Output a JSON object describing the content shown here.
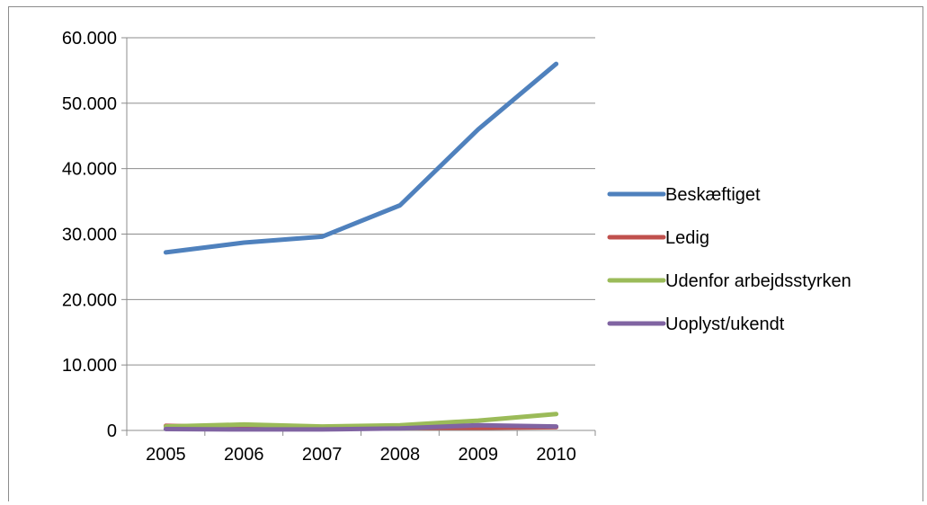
{
  "chart_data": {
    "type": "line",
    "title": "",
    "xlabel": "",
    "ylabel": "",
    "categories": [
      "2005",
      "2006",
      "2007",
      "2008",
      "2009",
      "2010"
    ],
    "ylim": [
      0,
      60000
    ],
    "yticks": [
      0,
      10000,
      20000,
      30000,
      40000,
      50000,
      60000
    ],
    "ytick_labels": [
      "0",
      "10.000",
      "20.000",
      "30.000",
      "40.000",
      "50.000",
      "60.000"
    ],
    "grid": true,
    "legend_position": "right",
    "series": [
      {
        "name": "Beskæftiget",
        "color": "#4f81bd",
        "values": [
          27200,
          28700,
          29600,
          34400,
          46000,
          56000
        ]
      },
      {
        "name": "Ledig",
        "color": "#c0504d",
        "values": [
          700,
          500,
          400,
          400,
          400,
          500
        ]
      },
      {
        "name": "Udenfor arbejdsstyrken",
        "color": "#9bbb59",
        "values": [
          600,
          900,
          600,
          800,
          1500,
          2500
        ]
      },
      {
        "name": "Uoplyst/ukendt",
        "color": "#8064a2",
        "values": [
          200,
          150,
          150,
          300,
          800,
          600
        ]
      }
    ]
  }
}
